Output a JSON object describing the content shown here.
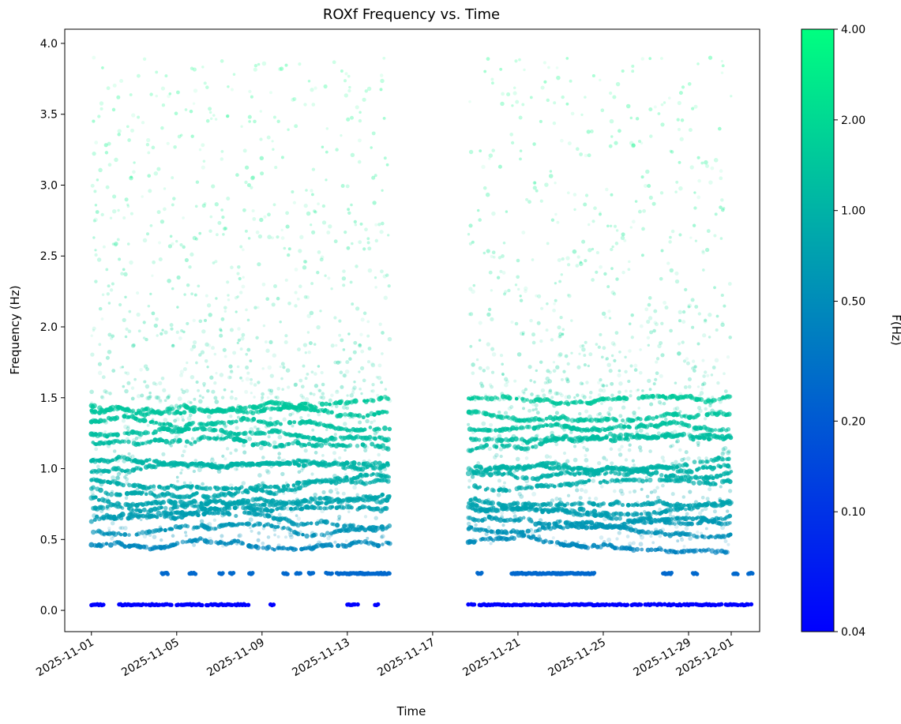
{
  "chart_data": {
    "type": "scatter",
    "title": "ROXf Frequency vs. Time",
    "xlabel": "Time",
    "ylabel": "Frequency (Hz)",
    "x_range": [
      "2025-10-30T18:00",
      "2025-12-02T08:00"
    ],
    "ylim": [
      -0.15,
      4.1
    ],
    "x_ticks": [
      "2025-11-01",
      "2025-11-05",
      "2025-11-09",
      "2025-11-13",
      "2025-11-17",
      "2025-11-21",
      "2025-11-25",
      "2025-11-29",
      "2025-12-01"
    ],
    "y_ticks": [
      "0.0",
      "0.5",
      "1.0",
      "1.5",
      "2.0",
      "2.5",
      "3.0",
      "3.5",
      "4.0"
    ],
    "grid": false,
    "data_gap": {
      "start": "2025-11-15",
      "end": "2025-11-18T16:00"
    },
    "color_encoding": "frequency (log scale)",
    "colorbar": {
      "label": "F(Hz)",
      "scale": "log",
      "range": [
        0.04,
        4.0
      ],
      "ticks": [
        "0.04",
        "0.10",
        "0.20",
        "0.50",
        "1.00",
        "2.00",
        "4.00"
      ],
      "colormap": "winter",
      "colors": [
        "#0000ff",
        "#00ff80"
      ]
    },
    "series": [
      {
        "kind": "line",
        "freq": 0.04,
        "density": "sparse clusters"
      },
      {
        "kind": "line",
        "freq": 0.26,
        "density": "intermittent"
      },
      {
        "kind": "band",
        "freq_range": [
          0.45,
          1.5
        ],
        "density": "dense bands"
      },
      {
        "kind": "scatter",
        "freq_range": [
          1.5,
          3.9
        ],
        "density": "faint sparse"
      }
    ]
  }
}
